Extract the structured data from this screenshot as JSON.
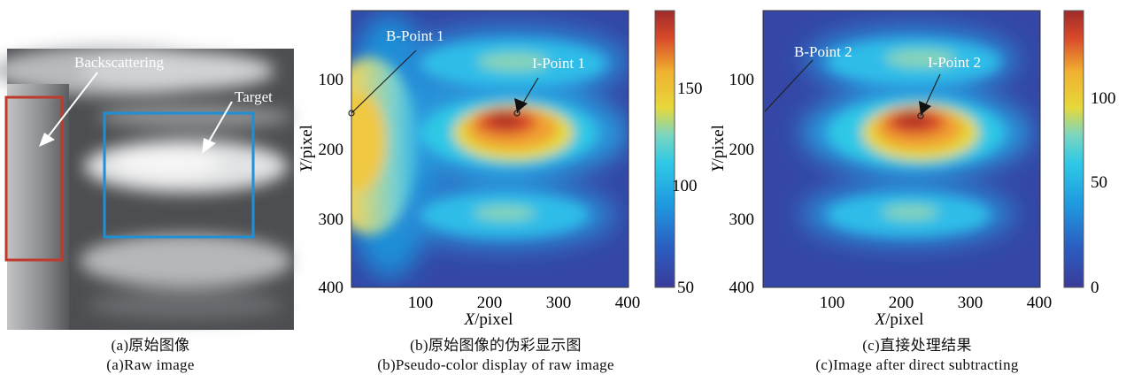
{
  "panel_a": {
    "labels": {
      "backscattering": "Backscattering",
      "target": "Target"
    },
    "caption_cn": "(a)原始图像",
    "caption_en": "(a)Raw image",
    "colors": {
      "backscatter_box": "#c0392b",
      "target_box": "#1f8fd6"
    }
  },
  "panel_b": {
    "labels": {
      "b_point": "B-Point 1",
      "i_point": "I-Point 1"
    },
    "y_ticks": [
      "100",
      "200",
      "300",
      "400"
    ],
    "x_ticks": [
      "100",
      "200",
      "300",
      "400"
    ],
    "colorbar_ticks": [
      "150",
      "100",
      "50"
    ],
    "xlabel_var": "X",
    "xlabel_unit": "/pixel",
    "ylabel_var": "Y",
    "ylabel_unit": "/pixel",
    "caption_cn": "(b)原始图像的伪彩显示图",
    "caption_en": "(b)Pseudo-color display of raw image"
  },
  "panel_c": {
    "labels": {
      "b_point": "B-Point 2",
      "i_point": "I-Point 2"
    },
    "y_ticks": [
      "100",
      "200",
      "300",
      "400"
    ],
    "x_ticks": [
      "100",
      "200",
      "300",
      "400"
    ],
    "colorbar_ticks": [
      "100",
      "50",
      "0"
    ],
    "xlabel_var": "X",
    "xlabel_unit": "/pixel",
    "ylabel_var": "Y",
    "ylabel_unit": "/pixel",
    "caption_cn": "(c)直接处理结果",
    "caption_en": "(c)Image after direct subtracting"
  },
  "colormap": [
    "#3a3b9a",
    "#2a5fc2",
    "#1f9ae0",
    "#2fc8e6",
    "#7ad6c0",
    "#e6d83a",
    "#f0b030",
    "#d94a2a",
    "#9e2a2a"
  ]
}
